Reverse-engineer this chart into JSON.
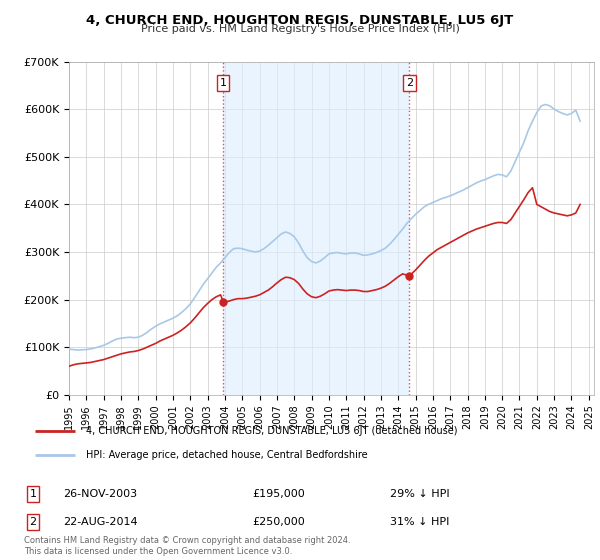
{
  "title": "4, CHURCH END, HOUGHTON REGIS, DUNSTABLE, LU5 6JT",
  "subtitle": "Price paid vs. HM Land Registry's House Price Index (HPI)",
  "hpi_color": "#a8c8e8",
  "price_color": "#cc2222",
  "shade_color": "#ddeeff",
  "background_color": "#ffffff",
  "grid_color": "#cccccc",
  "ylim": [
    0,
    700000
  ],
  "yticks": [
    0,
    100000,
    200000,
    300000,
    400000,
    500000,
    600000,
    700000
  ],
  "ytick_labels": [
    "£0",
    "£100K",
    "£200K",
    "£300K",
    "£400K",
    "£500K",
    "£600K",
    "£700K"
  ],
  "sale1_date": "26-NOV-2003",
  "sale1_price": 195000,
  "sale1_label": "29% ↓ HPI",
  "sale1_year": 2003.9,
  "sale2_date": "22-AUG-2014",
  "sale2_price": 250000,
  "sale2_label": "31% ↓ HPI",
  "sale2_year": 2014.65,
  "legend_property": "4, CHURCH END, HOUGHTON REGIS, DUNSTABLE, LU5 6JT (detached house)",
  "legend_hpi": "HPI: Average price, detached house, Central Bedfordshire",
  "footnote": "Contains HM Land Registry data © Crown copyright and database right 2024.\nThis data is licensed under the Open Government Licence v3.0.",
  "hpi_years": [
    1995.0,
    1995.25,
    1995.5,
    1995.75,
    1996.0,
    1996.25,
    1996.5,
    1996.75,
    1997.0,
    1997.25,
    1997.5,
    1997.75,
    1998.0,
    1998.25,
    1998.5,
    1998.75,
    1999.0,
    1999.25,
    1999.5,
    1999.75,
    2000.0,
    2000.25,
    2000.5,
    2000.75,
    2001.0,
    2001.25,
    2001.5,
    2001.75,
    2002.0,
    2002.25,
    2002.5,
    2002.75,
    2003.0,
    2003.25,
    2003.5,
    2003.75,
    2004.0,
    2004.25,
    2004.5,
    2004.75,
    2005.0,
    2005.25,
    2005.5,
    2005.75,
    2006.0,
    2006.25,
    2006.5,
    2006.75,
    2007.0,
    2007.25,
    2007.5,
    2007.75,
    2008.0,
    2008.25,
    2008.5,
    2008.75,
    2009.0,
    2009.25,
    2009.5,
    2009.75,
    2010.0,
    2010.25,
    2010.5,
    2010.75,
    2011.0,
    2011.25,
    2011.5,
    2011.75,
    2012.0,
    2012.25,
    2012.5,
    2012.75,
    2013.0,
    2013.25,
    2013.5,
    2013.75,
    2014.0,
    2014.25,
    2014.5,
    2014.75,
    2015.0,
    2015.25,
    2015.5,
    2015.75,
    2016.0,
    2016.25,
    2016.5,
    2016.75,
    2017.0,
    2017.25,
    2017.5,
    2017.75,
    2018.0,
    2018.25,
    2018.5,
    2018.75,
    2019.0,
    2019.25,
    2019.5,
    2019.75,
    2020.0,
    2020.25,
    2020.5,
    2020.75,
    2021.0,
    2021.25,
    2021.5,
    2021.75,
    2022.0,
    2022.25,
    2022.5,
    2022.75,
    2023.0,
    2023.25,
    2023.5,
    2023.75,
    2024.0,
    2024.25,
    2024.5
  ],
  "hpi_values": [
    96000,
    95000,
    94000,
    94500,
    95000,
    96500,
    98500,
    101000,
    104000,
    108000,
    113000,
    117000,
    119000,
    120000,
    121000,
    120000,
    121000,
    125000,
    131000,
    138000,
    144000,
    149000,
    153000,
    157000,
    161000,
    166000,
    173000,
    181000,
    191000,
    204000,
    218000,
    232000,
    244000,
    256000,
    268000,
    277000,
    288000,
    299000,
    307000,
    308000,
    307000,
    304000,
    302000,
    300000,
    302000,
    307000,
    314000,
    322000,
    330000,
    338000,
    342000,
    339000,
    332000,
    319000,
    302000,
    288000,
    280000,
    277000,
    281000,
    288000,
    296000,
    298000,
    299000,
    297000,
    296000,
    298000,
    298000,
    296000,
    293000,
    294000,
    296000,
    299000,
    303000,
    308000,
    316000,
    326000,
    337000,
    348000,
    360000,
    370000,
    379000,
    387000,
    395000,
    400000,
    404000,
    408000,
    412000,
    415000,
    418000,
    422000,
    426000,
    430000,
    435000,
    440000,
    445000,
    449000,
    452000,
    456000,
    460000,
    463000,
    462000,
    458000,
    470000,
    490000,
    510000,
    530000,
    555000,
    575000,
    593000,
    607000,
    610000,
    607000,
    600000,
    595000,
    591000,
    588000,
    591000,
    598000,
    575000
  ],
  "price_years": [
    1995.0,
    1995.25,
    1995.5,
    1995.75,
    1996.0,
    1996.25,
    1996.5,
    1996.75,
    1997.0,
    1997.25,
    1997.5,
    1997.75,
    1998.0,
    1998.25,
    1998.5,
    1998.75,
    1999.0,
    1999.25,
    1999.5,
    1999.75,
    2000.0,
    2000.25,
    2000.5,
    2000.75,
    2001.0,
    2001.25,
    2001.5,
    2001.75,
    2002.0,
    2002.25,
    2002.5,
    2002.75,
    2003.0,
    2003.25,
    2003.5,
    2003.75,
    2003.9,
    2004.0,
    2004.25,
    2004.5,
    2004.75,
    2005.0,
    2005.25,
    2005.5,
    2005.75,
    2006.0,
    2006.25,
    2006.5,
    2006.75,
    2007.0,
    2007.25,
    2007.5,
    2007.75,
    2008.0,
    2008.25,
    2008.5,
    2008.75,
    2009.0,
    2009.25,
    2009.5,
    2009.75,
    2010.0,
    2010.25,
    2010.5,
    2010.75,
    2011.0,
    2011.25,
    2011.5,
    2011.75,
    2012.0,
    2012.25,
    2012.5,
    2012.75,
    2013.0,
    2013.25,
    2013.5,
    2013.75,
    2014.0,
    2014.25,
    2014.65,
    2015.0,
    2015.25,
    2015.5,
    2015.75,
    2016.0,
    2016.25,
    2016.5,
    2016.75,
    2017.0,
    2017.25,
    2017.5,
    2017.75,
    2018.0,
    2018.25,
    2018.5,
    2018.75,
    2019.0,
    2019.25,
    2019.5,
    2019.75,
    2020.0,
    2020.25,
    2020.5,
    2020.75,
    2021.0,
    2021.25,
    2021.5,
    2021.75,
    2022.0,
    2022.25,
    2022.5,
    2022.75,
    2023.0,
    2023.25,
    2023.5,
    2023.75,
    2024.0,
    2024.25,
    2024.5
  ],
  "price_values": [
    60000,
    63000,
    65000,
    66000,
    67000,
    68000,
    70000,
    72000,
    74000,
    77000,
    80000,
    83000,
    86000,
    88000,
    90000,
    91000,
    93000,
    96000,
    100000,
    104000,
    108000,
    113000,
    117000,
    121000,
    125000,
    130000,
    136000,
    143000,
    151000,
    161000,
    172000,
    183000,
    192000,
    200000,
    206000,
    210000,
    195000,
    195000,
    197000,
    200000,
    202000,
    202000,
    203000,
    205000,
    207000,
    210000,
    215000,
    220000,
    227000,
    235000,
    242000,
    247000,
    246000,
    242000,
    234000,
    222000,
    212000,
    206000,
    204000,
    207000,
    212000,
    218000,
    220000,
    221000,
    220000,
    219000,
    220000,
    220000,
    219000,
    217000,
    217000,
    219000,
    221000,
    224000,
    228000,
    234000,
    241000,
    248000,
    254000,
    250000,
    262000,
    272000,
    282000,
    291000,
    298000,
    305000,
    310000,
    315000,
    320000,
    325000,
    330000,
    335000,
    340000,
    344000,
    348000,
    351000,
    354000,
    357000,
    360000,
    362000,
    362000,
    360000,
    368000,
    382000,
    396000,
    410000,
    425000,
    435000,
    400000,
    395000,
    390000,
    385000,
    382000,
    380000,
    378000,
    376000,
    378000,
    382000,
    400000
  ]
}
